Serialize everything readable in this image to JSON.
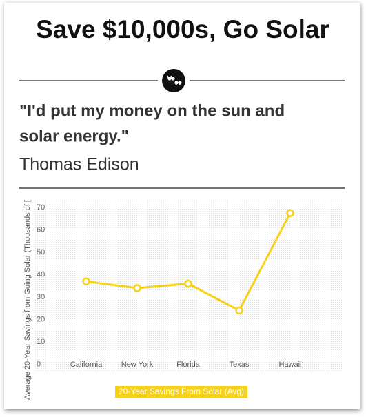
{
  "header": {
    "title": "Save $10,000s, Go Solar"
  },
  "quote": {
    "text_line1": "\"I'd put my money on the sun and",
    "text_line2": "solar energy.\"",
    "author": "Thomas Edison"
  },
  "chart_data": {
    "type": "line",
    "y_label": "Average 20-Year Savings from Going Solar (Thousands of [",
    "categories": [
      "California",
      "New York",
      "Florida",
      "Texas",
      "Hawaii"
    ],
    "series": [
      {
        "name": "20-Year Savings From Solar (Avg)",
        "color": "#f7d117",
        "values": [
          37,
          34,
          36,
          24,
          67.5
        ]
      }
    ],
    "ylim": [
      0,
      70
    ],
    "yticks": [
      0,
      10,
      20,
      30,
      40,
      50,
      60,
      70
    ],
    "grid": false,
    "legend": "bottom"
  }
}
